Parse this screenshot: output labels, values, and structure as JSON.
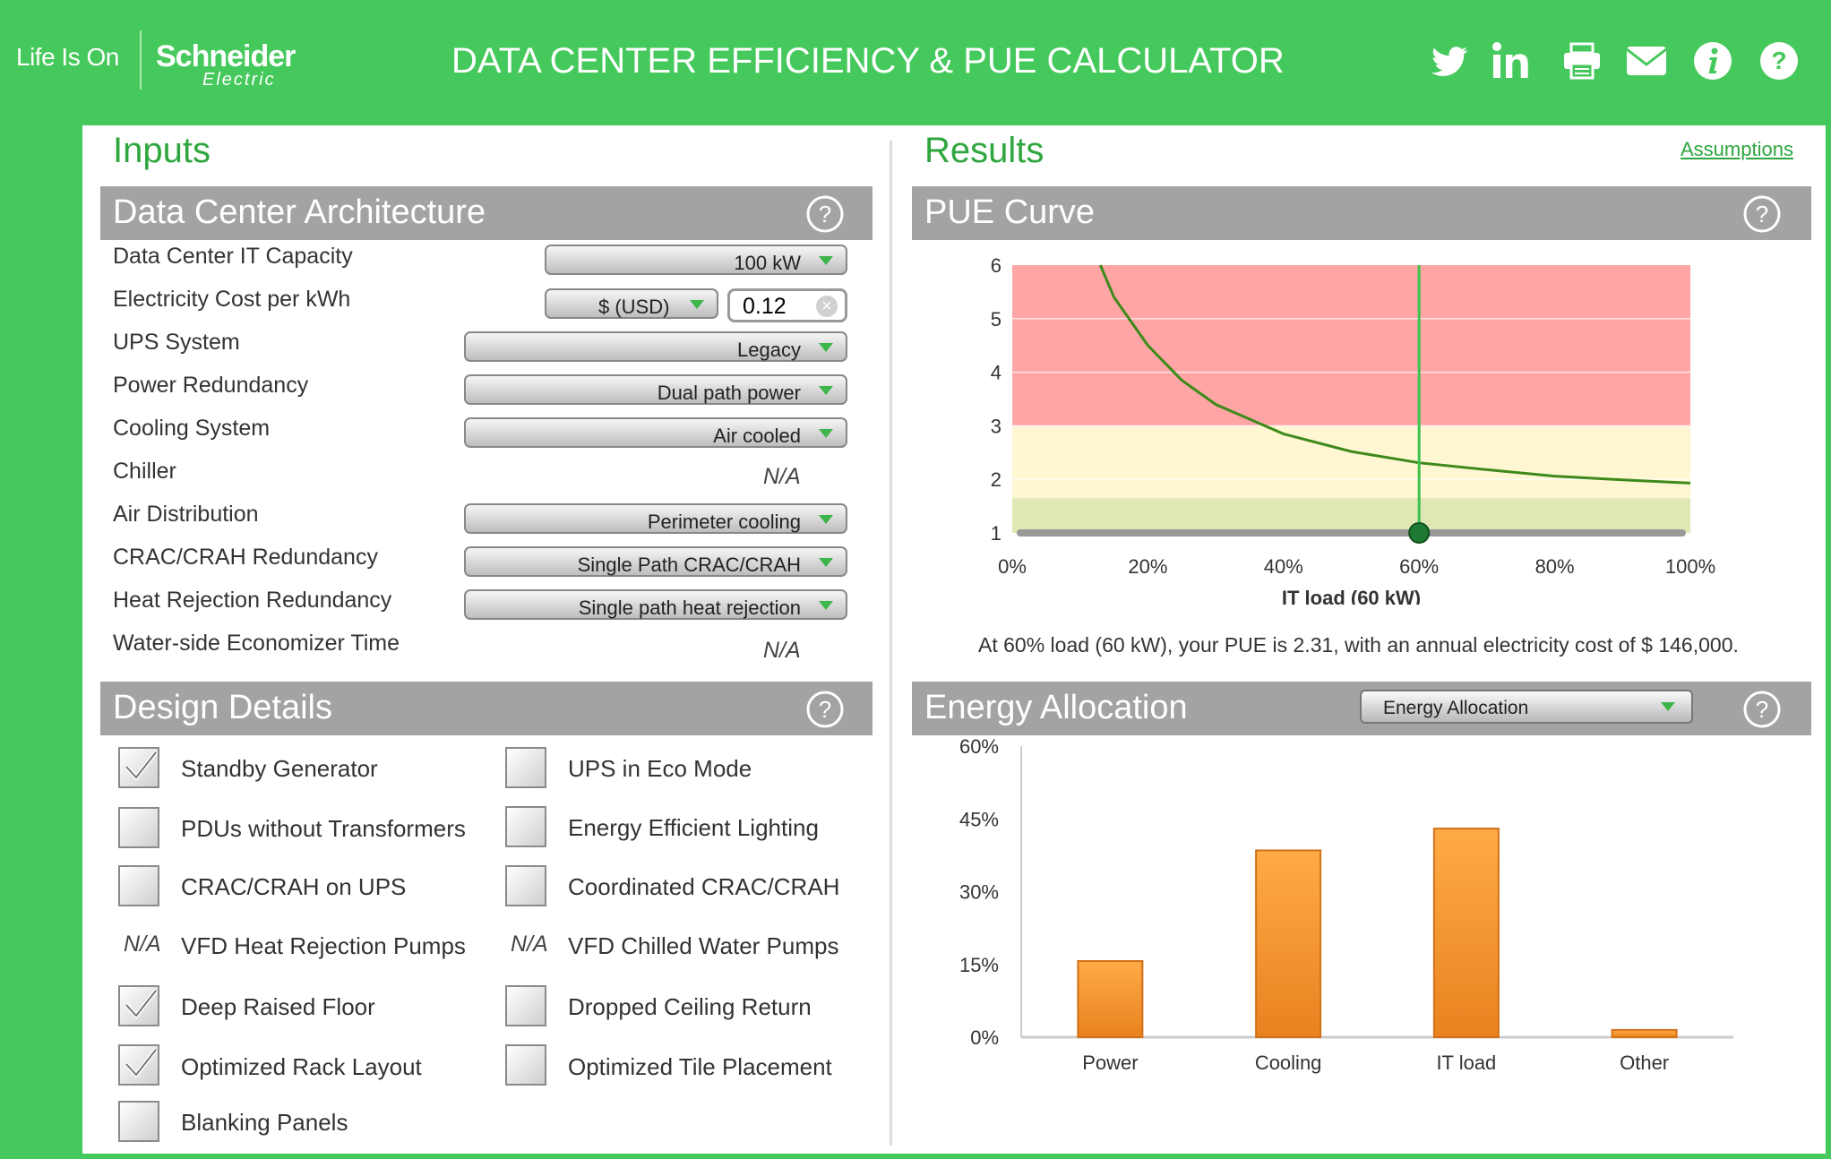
{
  "header": {
    "brand_tagline": "Life Is On",
    "brand_name": "Schneider",
    "brand_sub": "Electric",
    "title": "DATA CENTER EFFICIENCY & PUE CALCULATOR",
    "icons": [
      "twitter-icon",
      "linkedin-icon",
      "print-icon",
      "email-icon",
      "info-icon",
      "help-icon"
    ]
  },
  "inputs": {
    "heading": "Inputs",
    "architecture": {
      "title": "Data Center Architecture",
      "it_capacity": {
        "label": "Data Center IT Capacity",
        "value": "100 kW"
      },
      "electricity": {
        "label": "Electricity Cost per kWh",
        "currency": "$ (USD)",
        "value": "0.12"
      },
      "ups": {
        "label": "UPS System",
        "value": "Legacy"
      },
      "power_redundancy": {
        "label": "Power Redundancy",
        "value": "Dual path power"
      },
      "cooling": {
        "label": "Cooling System",
        "value": "Air cooled"
      },
      "chiller": {
        "label": "Chiller",
        "value": "N/A"
      },
      "air_distribution": {
        "label": "Air Distribution",
        "value": "Perimeter cooling"
      },
      "crac_redundancy": {
        "label": "CRAC/CRAH Redundancy",
        "value": "Single Path CRAC/CRAH"
      },
      "heat_rejection": {
        "label": "Heat Rejection Redundancy",
        "value": "Single path heat rejection"
      },
      "economizer": {
        "label": "Water-side Economizer Time",
        "value": "N/A"
      }
    },
    "design": {
      "title": "Design Details",
      "na_text": "N/A",
      "left": [
        {
          "label": "Standby Generator",
          "checked": true
        },
        {
          "label": "PDUs without Transformers",
          "checked": false
        },
        {
          "label": "CRAC/CRAH on UPS",
          "checked": false
        },
        {
          "label": "VFD Heat Rejection Pumps",
          "na": true
        },
        {
          "label": "Deep Raised Floor",
          "checked": true
        },
        {
          "label": "Optimized Rack Layout",
          "checked": true
        },
        {
          "label": "Blanking Panels",
          "checked": false
        }
      ],
      "right": [
        {
          "label": "UPS in Eco Mode",
          "checked": false
        },
        {
          "label": "Energy Efficient Lighting",
          "checked": false
        },
        {
          "label": "Coordinated CRAC/CRAH",
          "checked": false
        },
        {
          "label": "VFD Chilled Water Pumps",
          "na": true
        },
        {
          "label": "Dropped Ceiling Return",
          "checked": false
        },
        {
          "label": "Optimized Tile Placement",
          "checked": false
        }
      ]
    }
  },
  "results": {
    "heading": "Results",
    "assumptions_link": "Assumptions",
    "pue_title": "PUE Curve",
    "energy_title": "Energy Allocation",
    "energy_select": "Energy Allocation",
    "summary": "At 60% load (60 kW), your PUE is 2.31, with an annual electricity cost of $ 146,000.",
    "slider_value": 0.6
  },
  "colors": {
    "brand_green": "#46c95c",
    "accent_green": "#2fa63f",
    "curve": "#3d8a1a",
    "zone_red": "#ffa5a5",
    "zone_yellow": "#fff6d2",
    "zone_green": "#dfe8b4",
    "bar": "#f39a2c"
  },
  "chart_data": [
    {
      "type": "line",
      "title": "PUE Curve",
      "xlabel": "IT load (60 kW)",
      "ylabel": "",
      "xlim": [
        0,
        100
      ],
      "ylim": [
        1,
        6
      ],
      "x_ticks": [
        "0%",
        "20%",
        "40%",
        "60%",
        "80%",
        "100%"
      ],
      "y_ticks": [
        "1",
        "2",
        "3",
        "4",
        "5",
        "6"
      ],
      "zones": [
        {
          "name": "green",
          "from": 1,
          "to": 1.65
        },
        {
          "name": "yellow",
          "from": 1.65,
          "to": 3.0
        },
        {
          "name": "red",
          "from": 3.0,
          "to": 6.0
        }
      ],
      "series": [
        {
          "name": "PUE",
          "x": [
            13,
            15,
            20,
            25,
            30,
            40,
            50,
            60,
            70,
            80,
            90,
            100
          ],
          "y": [
            6.0,
            5.4,
            4.5,
            3.85,
            3.4,
            2.85,
            2.52,
            2.31,
            2.18,
            2.06,
            1.99,
            1.93
          ]
        }
      ],
      "marker": {
        "x": 60,
        "label": "60%"
      }
    },
    {
      "type": "bar",
      "title": "Energy Allocation",
      "categories": [
        "Power",
        "Cooling",
        "IT load",
        "Other"
      ],
      "values": [
        15.7,
        38.5,
        43,
        1.5
      ],
      "y_ticks": [
        "0%",
        "15%",
        "30%",
        "45%",
        "60%"
      ],
      "ylim": [
        0,
        60
      ]
    }
  ]
}
